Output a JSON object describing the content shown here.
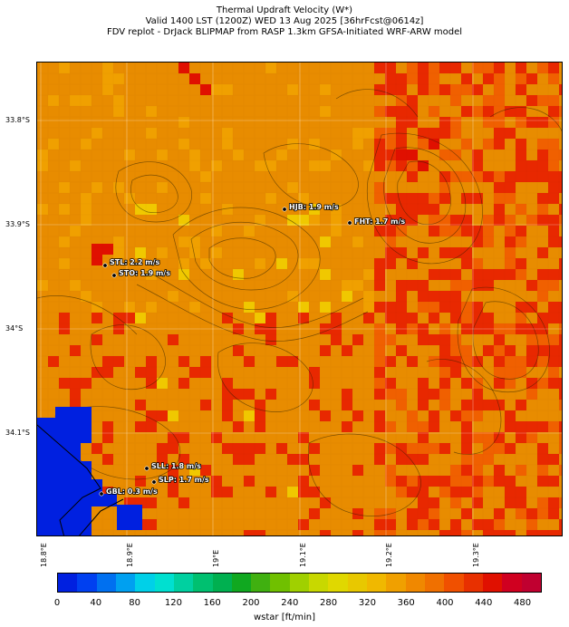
{
  "titles": {
    "line1": "Thermal Updraft Velocity (W*)",
    "line2": "Valid 1400 LST (1200Z) WED 13 Aug 2025 [36hrFcst@0614z]",
    "line3": "FDV replot - DrJack BLIPMAP from RASP 1.3km GFSA-Initiated WRF-ARW model"
  },
  "axes": {
    "lat_ticks": [
      "33.8°S",
      "33.9°S",
      "34°S",
      "34.1°S"
    ],
    "lon_ticks": [
      "18.8°E",
      "18.9°E",
      "19°E",
      "19.1°E",
      "19.2°E",
      "19.3°E"
    ]
  },
  "stations": [
    {
      "label": "HJB: 1.9 m/s"
    },
    {
      "label": "FHT: 1.7 m/s"
    },
    {
      "label": "STL: 2.2 m/s"
    },
    {
      "label": "STO: 1.9 m/s"
    },
    {
      "label": "SLL: 1.8 m/s"
    },
    {
      "label": "SLP: 1.7 m/s"
    },
    {
      "label": "GBL: 0.3 m/s"
    }
  ],
  "colorbar": {
    "label": "wstar [ft/min]",
    "ticks": [
      "0",
      "40",
      "80",
      "120",
      "160",
      "200",
      "240",
      "280",
      "320",
      "360",
      "400",
      "440",
      "480"
    ],
    "colors": [
      "#0020e0",
      "#0040f0",
      "#0070f0",
      "#00a0f0",
      "#00d0e8",
      "#00e0d0",
      "#00d0a0",
      "#00c070",
      "#00b050",
      "#10a820",
      "#40b010",
      "#70c000",
      "#a0d000",
      "#c8d800",
      "#e0d800",
      "#e8c800",
      "#f0b800",
      "#f0a000",
      "#f08800",
      "#f07000",
      "#f05000",
      "#e83000",
      "#e01000",
      "#d00020",
      "#c00030"
    ]
  },
  "colors": {
    "land_base": "#e88c00",
    "high": "#e82800",
    "mid": "#f0a000",
    "low": "#f0c800",
    "ocean": "#0020e0"
  }
}
